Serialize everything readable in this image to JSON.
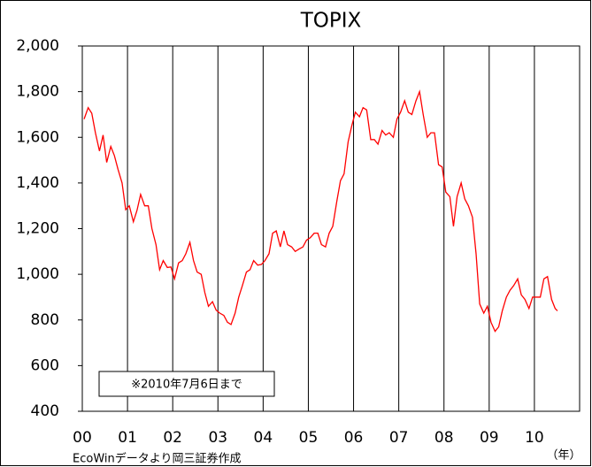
{
  "chart_data": {
    "type": "line",
    "title": "TOPIX",
    "x": [
      2000.04,
      2000.13,
      2000.21,
      2000.29,
      2000.38,
      2000.46,
      2000.54,
      2000.63,
      2000.71,
      2000.79,
      2000.88,
      2000.96,
      2001.04,
      2001.13,
      2001.21,
      2001.29,
      2001.38,
      2001.46,
      2001.54,
      2001.63,
      2001.71,
      2001.79,
      2001.88,
      2001.96,
      2002.04,
      2002.13,
      2002.21,
      2002.29,
      2002.38,
      2002.46,
      2002.54,
      2002.63,
      2002.71,
      2002.79,
      2002.88,
      2002.96,
      2003.04,
      2003.13,
      2003.21,
      2003.29,
      2003.38,
      2003.46,
      2003.54,
      2003.63,
      2003.71,
      2003.79,
      2003.88,
      2003.96,
      2004.04,
      2004.13,
      2004.21,
      2004.29,
      2004.38,
      2004.46,
      2004.54,
      2004.63,
      2004.71,
      2004.79,
      2004.88,
      2004.96,
      2005.04,
      2005.13,
      2005.21,
      2005.29,
      2005.38,
      2005.46,
      2005.54,
      2005.63,
      2005.71,
      2005.79,
      2005.88,
      2005.96,
      2006.04,
      2006.13,
      2006.21,
      2006.29,
      2006.38,
      2006.46,
      2006.54,
      2006.63,
      2006.71,
      2006.79,
      2006.88,
      2006.96,
      2007.04,
      2007.13,
      2007.21,
      2007.29,
      2007.38,
      2007.46,
      2007.54,
      2007.63,
      2007.71,
      2007.79,
      2007.88,
      2007.96,
      2008.04,
      2008.13,
      2008.21,
      2008.29,
      2008.38,
      2008.46,
      2008.54,
      2008.63,
      2008.71,
      2008.79,
      2008.88,
      2008.96,
      2009.04,
      2009.13,
      2009.21,
      2009.29,
      2009.38,
      2009.46,
      2009.54,
      2009.63,
      2009.71,
      2009.79,
      2009.88,
      2009.96,
      2010.04,
      2010.13,
      2010.21,
      2010.29,
      2010.38,
      2010.46,
      2010.51
    ],
    "values": [
      1680,
      1730,
      1705,
      1620,
      1540,
      1610,
      1490,
      1560,
      1520,
      1460,
      1400,
      1283,
      1300,
      1230,
      1280,
      1350,
      1300,
      1300,
      1200,
      1130,
      1020,
      1060,
      1030,
      1032,
      980,
      1050,
      1060,
      1090,
      1140,
      1060,
      1010,
      1000,
      920,
      860,
      880,
      843,
      830,
      820,
      790,
      780,
      830,
      900,
      950,
      1010,
      1020,
      1060,
      1040,
      1043,
      1060,
      1090,
      1180,
      1190,
      1120,
      1190,
      1130,
      1120,
      1100,
      1110,
      1120,
      1150,
      1160,
      1180,
      1180,
      1130,
      1120,
      1180,
      1210,
      1320,
      1410,
      1440,
      1580,
      1650,
      1710,
      1690,
      1730,
      1720,
      1590,
      1590,
      1570,
      1630,
      1610,
      1620,
      1600,
      1680,
      1710,
      1760,
      1710,
      1700,
      1760,
      1800,
      1700,
      1600,
      1620,
      1620,
      1480,
      1470,
      1360,
      1340,
      1210,
      1340,
      1400,
      1330,
      1300,
      1250,
      1090,
      870,
      830,
      860,
      790,
      750,
      770,
      840,
      900,
      930,
      950,
      980,
      910,
      890,
      850,
      900,
      900,
      900,
      980,
      990,
      890,
      850,
      840
    ],
    "color": "#ff0000",
    "xlim": [
      2000,
      2011
    ],
    "xticks": [
      {
        "value": 2000,
        "label": "00"
      },
      {
        "value": 2001,
        "label": "01"
      },
      {
        "value": 2002,
        "label": "02"
      },
      {
        "value": 2003,
        "label": "03"
      },
      {
        "value": 2004,
        "label": "04"
      },
      {
        "value": 2005,
        "label": "05"
      },
      {
        "value": 2006,
        "label": "06"
      },
      {
        "value": 2007,
        "label": "07"
      },
      {
        "value": 2008,
        "label": "08"
      },
      {
        "value": 2009,
        "label": "09"
      },
      {
        "value": 2010,
        "label": "10"
      }
    ],
    "ylim": [
      400,
      2000
    ],
    "yticks": [
      {
        "value": 2000,
        "label": "2,000"
      },
      {
        "value": 1800,
        "label": "1,800"
      },
      {
        "value": 1600,
        "label": "1,600"
      },
      {
        "value": 1400,
        "label": "1,400"
      },
      {
        "value": 1200,
        "label": "1,200"
      },
      {
        "value": 1000,
        "label": "1,000"
      },
      800,
      600,
      400
    ],
    "annotation": "※2010年7月6日まで",
    "source": "EcoWinデータより岡三証券作成",
    "x_unit": "（年）",
    "grid": true
  }
}
